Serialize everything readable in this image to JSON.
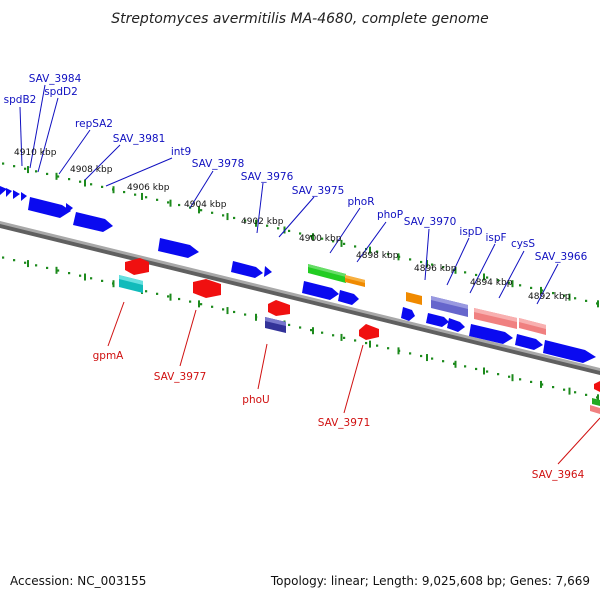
{
  "title": "Streptomyces avermitilis MA-4680, complete genome",
  "footer": {
    "accession": "Accession: NC_003155",
    "topology": "Topology: linear; Length: 9,025,608 bp; Genes: 7,669"
  },
  "colors": {
    "forward": "#0a0af0",
    "reverse": "#f01010",
    "backbone": "#808080",
    "scale": "#1c8a1c",
    "label_top": "#1010c0",
    "label_bot": "#d01010"
  },
  "scale_ticks": [
    "4910 kbp",
    "4908 kbp",
    "4906 kbp",
    "4904 kbp",
    "4902 kbp",
    "4900 kbp",
    "4898 kbp",
    "4896 kbp",
    "4894 kbp",
    "4892 kbp"
  ],
  "top_labels": [
    "spdB2",
    "SAV_3984",
    "spdD2",
    "repSA2",
    "SAV_3981",
    "int9",
    "SAV_3978",
    "SAV_3976",
    "SAV_3975",
    "phoR",
    "phoP",
    "SAV_3970",
    "ispD",
    "ispF",
    "cysS",
    "SAV_3966"
  ],
  "bottom_labels": [
    "gpmA",
    "SAV_3977",
    "phoU",
    "SAV_3971",
    "SAV_3964"
  ]
}
